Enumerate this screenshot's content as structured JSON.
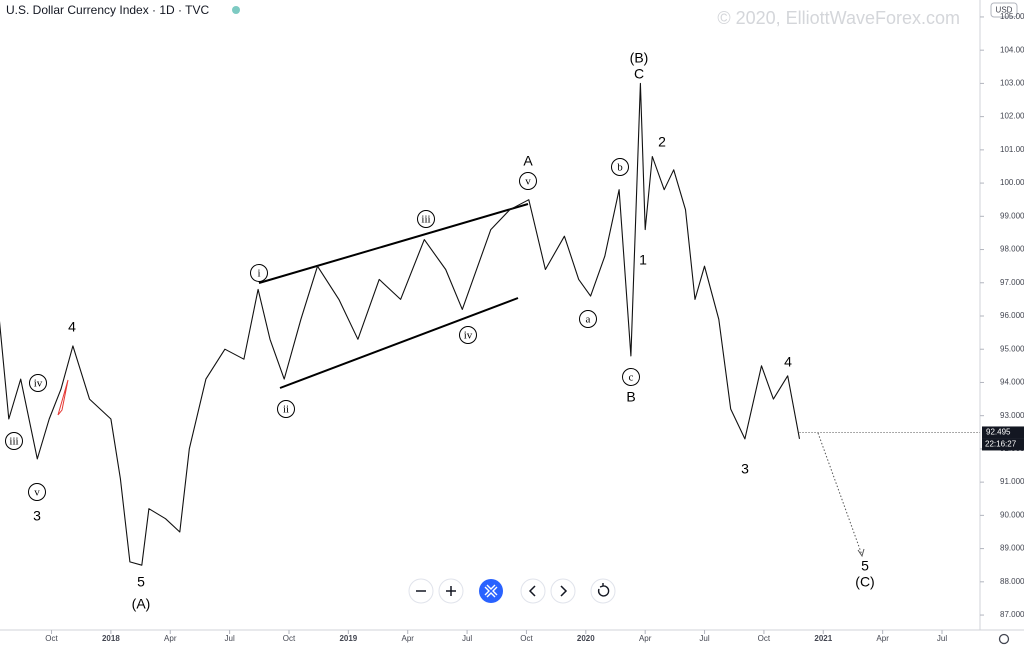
{
  "chart_data": {
    "type": "line",
    "title": "U.S. Dollar Currency Index · 1D · TVC",
    "watermark": "© 2020, ElliottWaveForex.com",
    "currency": "USD",
    "last_price": 92.495,
    "countdown": "22:16:27",
    "series": [
      {
        "color": "#111111",
        "x": [
          2017.53,
          2017.57,
          2017.62,
          2017.69,
          2017.74,
          2017.79,
          2017.84,
          2017.91,
          2018.0,
          2018.04,
          2018.08,
          2018.13,
          2018.16,
          2018.23,
          2018.29,
          2018.33,
          2018.4,
          2018.48,
          2018.56,
          2018.62,
          2018.67,
          2018.73,
          2018.8,
          2018.87,
          2018.96,
          2019.04,
          2019.13,
          2019.22,
          2019.32,
          2019.41,
          2019.48,
          2019.6,
          2019.68,
          2019.76,
          2019.83,
          2019.91,
          2019.97,
          2020.02,
          2020.08,
          2020.14,
          2020.19,
          2020.23,
          2020.25,
          2020.28,
          2020.33,
          2020.37,
          2020.42,
          2020.46,
          2020.5,
          2020.56,
          2020.61,
          2020.67,
          2020.74,
          2020.79,
          2020.85,
          2020.9
        ],
        "values": [
          95.9,
          92.9,
          94.1,
          91.7,
          92.9,
          93.8,
          95.1,
          93.5,
          92.9,
          91.1,
          88.6,
          88.5,
          90.2,
          89.9,
          89.5,
          92.0,
          94.1,
          95.0,
          94.7,
          96.8,
          95.3,
          94.1,
          95.9,
          97.5,
          96.5,
          95.3,
          97.1,
          96.5,
          98.3,
          97.4,
          96.2,
          98.6,
          99.2,
          99.5,
          97.4,
          98.4,
          97.1,
          96.6,
          97.8,
          99.8,
          94.8,
          103.0,
          98.6,
          100.8,
          99.8,
          100.4,
          99.2,
          96.5,
          97.5,
          95.9,
          93.2,
          92.3,
          94.5,
          93.5,
          94.2,
          92.3
        ]
      }
    ],
    "xlim": [
      2017.533,
      2021.66
    ],
    "xticks": [
      {
        "value": 2017.75,
        "label": "Oct"
      },
      2018,
      {
        "value": 2018.25,
        "label": "Apr"
      },
      {
        "value": 2018.5,
        "label": "Jul"
      },
      {
        "value": 2018.75,
        "label": "Oct"
      },
      2019,
      {
        "value": 2019.25,
        "label": "Apr"
      },
      {
        "value": 2019.5,
        "label": "Jul"
      },
      {
        "value": 2019.75,
        "label": "Oct"
      },
      2020,
      {
        "value": 2020.25,
        "label": "Apr"
      },
      {
        "value": 2020.5,
        "label": "Jul"
      },
      {
        "value": 2020.75,
        "label": "Oct"
      },
      2021,
      {
        "value": 2021.25,
        "label": "Apr"
      },
      {
        "value": 2021.5,
        "label": "Jul"
      }
    ],
    "ylim": [
      86.55,
      105.51
    ],
    "yticks": [
      {
        "value": 87,
        "label": "87.000"
      },
      {
        "value": 88,
        "label": "88.000"
      },
      {
        "value": 89,
        "label": "89.000"
      },
      {
        "value": 90,
        "label": "90.000"
      },
      {
        "value": 91,
        "label": "91.000"
      },
      {
        "value": 92,
        "label": "92.000"
      },
      {
        "value": 93,
        "label": "93.000"
      },
      {
        "value": 94,
        "label": "94.000"
      },
      {
        "value": 95,
        "label": "95.000"
      },
      {
        "value": 96,
        "label": "96.000"
      },
      {
        "value": 97,
        "label": "97.000"
      },
      {
        "value": 98,
        "label": "98.000"
      },
      {
        "value": 99,
        "label": "99.000"
      },
      {
        "value": 100,
        "label": "100.000"
      },
      {
        "value": 101,
        "label": "101.000"
      },
      {
        "value": 102,
        "label": "102.000"
      },
      {
        "value": 103,
        "label": "103.000"
      },
      {
        "value": 104,
        "label": "104.000"
      },
      {
        "value": 105,
        "label": "105.000"
      }
    ],
    "annotations": [
      {
        "text": "4",
        "circled": false
      },
      {
        "text": "iv",
        "circled": true
      },
      {
        "text": "iii",
        "circled": true
      },
      {
        "text": "v",
        "circled": true
      },
      {
        "text": "3",
        "circled": false
      },
      {
        "text": "5",
        "circled": false
      },
      {
        "text": "(A)",
        "circled": false
      },
      {
        "text": "i",
        "circled": true
      },
      {
        "text": "ii",
        "circled": true
      },
      {
        "text": "iii",
        "circled": true
      },
      {
        "text": "iv",
        "circled": true
      },
      {
        "text": "v",
        "circled": true
      },
      {
        "text": "A",
        "circled": false
      },
      {
        "text": "a",
        "circled": true
      },
      {
        "text": "b",
        "circled": true
      },
      {
        "text": "c",
        "circled": true
      },
      {
        "text": "B",
        "circled": false
      },
      {
        "text": "(B)",
        "circled": false
      },
      {
        "text": "C",
        "circled": false
      },
      {
        "text": "1",
        "circled": false
      },
      {
        "text": "2",
        "circled": false
      },
      {
        "text": "3",
        "circled": false
      },
      {
        "text": "4",
        "circled": false
      },
      {
        "text": "5",
        "circled": false
      },
      {
        "text": "(C)",
        "circled": false
      }
    ]
  }
}
